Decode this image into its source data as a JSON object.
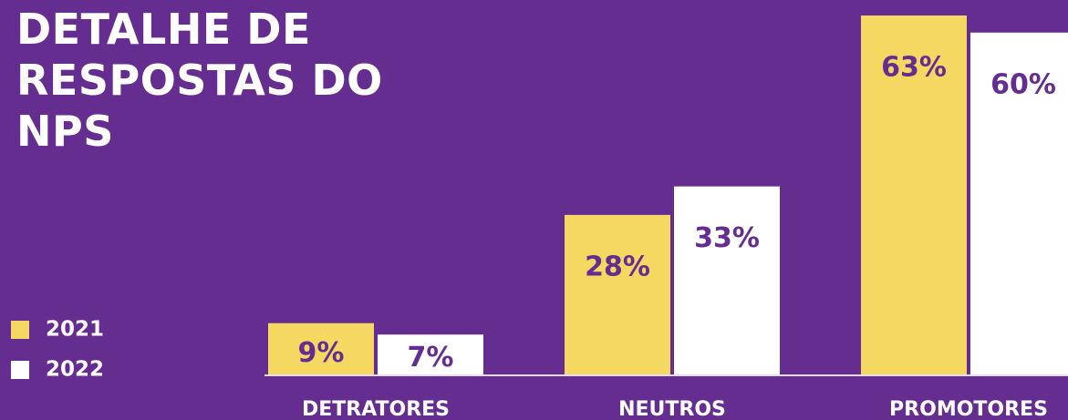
{
  "chart_data": {
    "type": "bar",
    "title": "DETALHE DE RESPOSTAS DO NPS",
    "categories": [
      "DETRATORES",
      "NEUTROS",
      "PROMOTORES"
    ],
    "series": [
      {
        "name": "2021",
        "color": "#f4d862",
        "values": [
          9,
          28,
          63
        ],
        "value_labels": [
          "9%",
          "28%",
          "63%"
        ]
      },
      {
        "name": "2022",
        "color": "#ffffff",
        "values": [
          7,
          33,
          60
        ],
        "value_labels": [
          "7%",
          "33%",
          "60%"
        ]
      }
    ]
  }
}
